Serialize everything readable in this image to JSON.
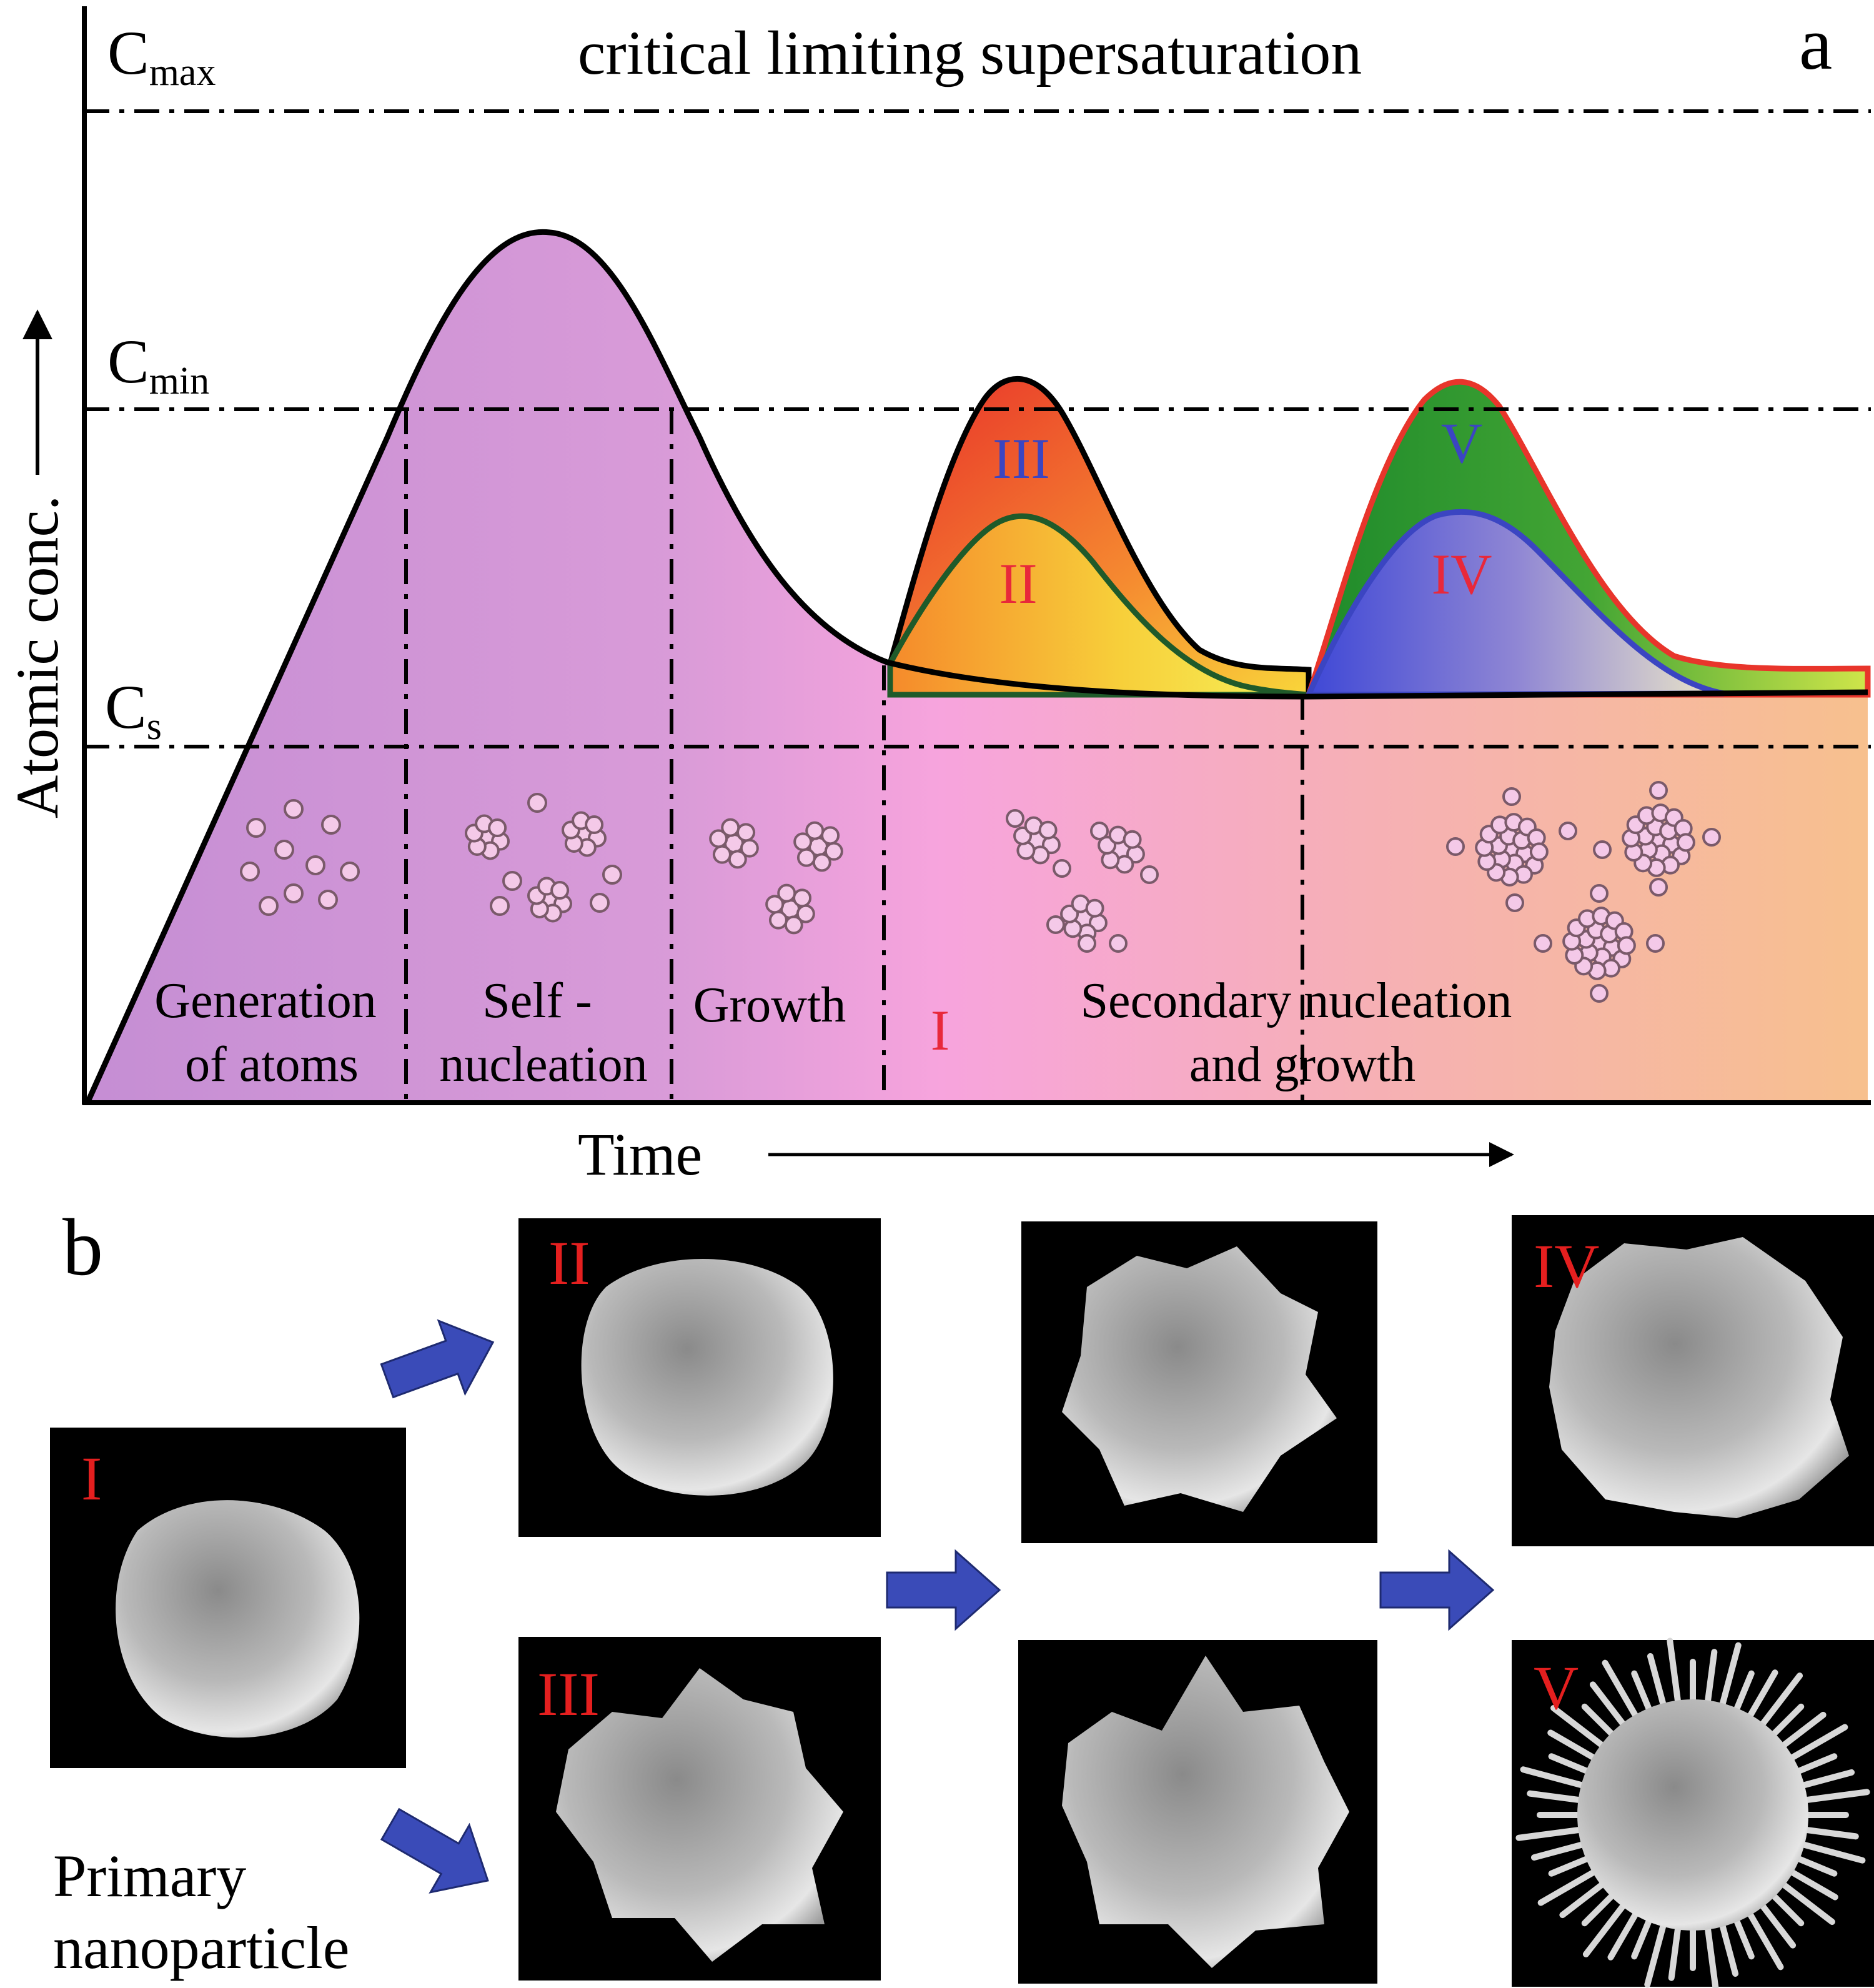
{
  "panel_a": {
    "panel_label": "a",
    "y_axis_label": "Atomic conc.",
    "x_axis_label": "Time",
    "levels": [
      {
        "base": "C",
        "sub": "max",
        "description": "critical limiting supersaturation"
      },
      {
        "base": "C",
        "sub": "min",
        "description": ""
      },
      {
        "base": "C",
        "sub": "s",
        "description": ""
      }
    ],
    "stages": [
      {
        "lines": [
          "Generation",
          "of atoms"
        ]
      },
      {
        "lines": [
          "Self -",
          "nucleation"
        ]
      },
      {
        "lines": [
          "Growth"
        ]
      },
      {
        "lines": [
          "Secondary nucleation",
          "and growth"
        ]
      }
    ],
    "curve_labels": [
      "I",
      "II",
      "III",
      "IV",
      "V"
    ],
    "colors": {
      "purple": "#c88fd6",
      "pink": "#f2a6d2",
      "peach": "#f7c093",
      "red": "#e8352b",
      "orange": "#f7922e",
      "yellow": "#f4e03a",
      "green": "#1f8a2a",
      "blue": "#4a4fd0",
      "red_label": "#e8283a",
      "blue_label": "#3b45c2"
    }
  },
  "panel_b": {
    "panel_label": "b",
    "caption_lines": [
      "Primary",
      "nanoparticle"
    ],
    "tile_labels": [
      "I",
      "II",
      "III",
      "IV",
      "V"
    ],
    "arrow_color": "#3a4bb8",
    "label_color": "#e41f1f"
  }
}
